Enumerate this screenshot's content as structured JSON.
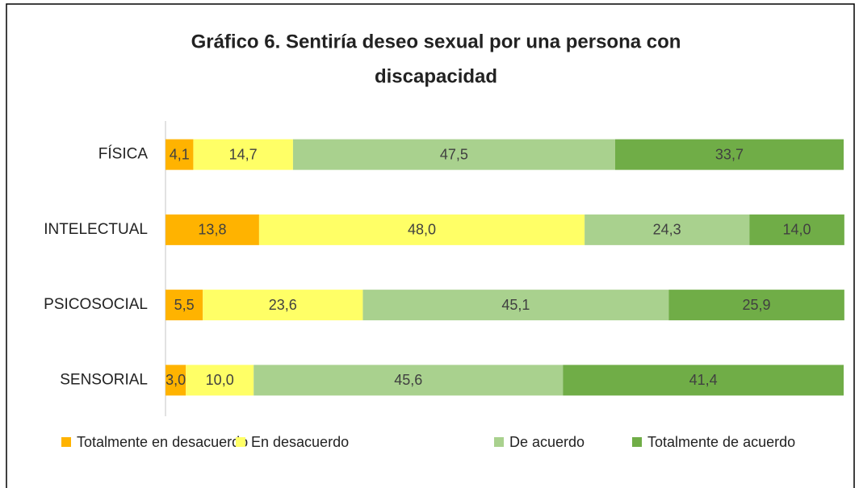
{
  "chart_data": {
    "type": "stacked_barh",
    "title_lines": [
      "Gráfico 6. Sentiría deseo sexual por una persona con",
      "discapacidad"
    ],
    "categories": [
      "FÍSICA",
      "INTELECTUAL",
      "PSICOSOCIAL",
      "SENSORIAL"
    ],
    "xlim": [
      0,
      100
    ],
    "series": [
      {
        "name": "Totalmente en desacuerdo",
        "color": "#FFB300",
        "values": [
          4.1,
          13.8,
          5.5,
          3.0
        ],
        "value_labels": [
          "4,1",
          "13,8",
          "5,5",
          "3,0"
        ]
      },
      {
        "name": "En desacuerdo",
        "color": "#FFFF66",
        "values": [
          14.7,
          48.0,
          23.6,
          10.0
        ],
        "value_labels": [
          "14,7",
          "48,0",
          "23,6",
          "10,0"
        ]
      },
      {
        "name": "De acuerdo",
        "color": "#A9D18E",
        "values": [
          47.5,
          24.3,
          45.1,
          45.6
        ],
        "value_labels": [
          "47,5",
          "24,3",
          "45,1",
          "45,6"
        ]
      },
      {
        "name": "Totalmente de acuerdo",
        "color": "#70AD47",
        "values": [
          33.7,
          14.0,
          25.9,
          41.4
        ],
        "value_labels": [
          "33,7",
          "14,0",
          "25,9",
          "41,4"
        ]
      }
    ],
    "legend": "bottom"
  }
}
